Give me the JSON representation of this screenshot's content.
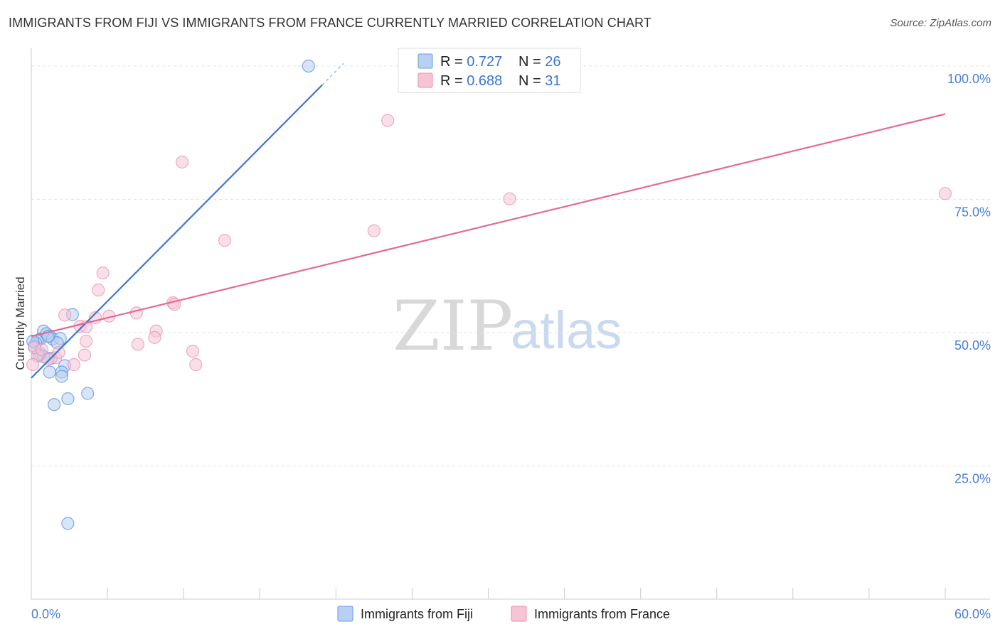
{
  "title": "IMMIGRANTS FROM FIJI VS IMMIGRANTS FROM FRANCE CURRENTLY MARRIED CORRELATION CHART",
  "source": "Source: ZipAtlas.com",
  "watermark": {
    "zip": "ZIP",
    "atlas": "atlas"
  },
  "colors": {
    "fiji": "#3a78d6",
    "france": "#e46a95",
    "fiji_fill": "#b7d0f3",
    "france_fill": "#f7c4d5"
  },
  "chart_data": {
    "type": "scatter",
    "title": "IMMIGRANTS FROM FIJI VS IMMIGRANTS FROM FRANCE CURRENTLY MARRIED CORRELATION CHART",
    "xlabel": "",
    "ylabel": "Currently Married",
    "xlim": [
      0,
      60
    ],
    "ylim": [
      0,
      102
    ],
    "x_tick_labels": [
      "0.0%",
      "60.0%"
    ],
    "y_ticks": [
      25,
      50,
      75,
      100
    ],
    "y_tick_labels": [
      "25.0%",
      "50.0%",
      "75.0%",
      "100.0%"
    ],
    "grid": true,
    "legend": {
      "placement": "top-center",
      "entries": [
        {
          "r_label": "R = ",
          "r_value": "0.727",
          "n_label": "N = ",
          "n_value": "26"
        },
        {
          "r_label": "R = ",
          "r_value": "0.688",
          "n_label": "N = ",
          "n_value": "31"
        }
      ]
    },
    "bottom_legend": [
      "Immigrants from Fiji",
      "Immigrants from France"
    ],
    "series": [
      {
        "name": "Immigrants from Fiji",
        "points": [
          [
            18.2,
            100.0
          ],
          [
            2.7,
            53.4
          ],
          [
            0.8,
            50.3
          ],
          [
            1.2,
            49.4
          ],
          [
            0.6,
            48.8
          ],
          [
            0.4,
            48.5
          ],
          [
            1.0,
            49.8
          ],
          [
            1.4,
            48.8
          ],
          [
            1.9,
            48.9
          ],
          [
            0.3,
            48.0
          ],
          [
            1.7,
            48.1
          ],
          [
            0.2,
            47.5
          ],
          [
            0.6,
            46.1
          ],
          [
            1.3,
            45.2
          ],
          [
            2.2,
            43.8
          ],
          [
            1.2,
            42.6
          ],
          [
            2.0,
            42.6
          ],
          [
            2.0,
            41.8
          ],
          [
            2.4,
            37.6
          ],
          [
            1.5,
            36.5
          ],
          [
            3.7,
            38.6
          ],
          [
            0.8,
            45.5
          ],
          [
            2.4,
            14.2
          ],
          [
            0.1,
            48.4
          ],
          [
            0.5,
            45.8
          ],
          [
            1.1,
            49.3
          ]
        ],
        "trend": {
          "x": [
            0.0,
            20.5
          ],
          "y": [
            41.5,
            100.5
          ]
        }
      },
      {
        "name": "Immigrants from France",
        "points": [
          [
            23.4,
            89.8
          ],
          [
            9.9,
            82.0
          ],
          [
            31.4,
            75.1
          ],
          [
            60.0,
            76.1
          ],
          [
            12.7,
            67.3
          ],
          [
            22.5,
            69.1
          ],
          [
            4.7,
            61.2
          ],
          [
            4.4,
            58.0
          ],
          [
            9.3,
            55.6
          ],
          [
            9.4,
            55.3
          ],
          [
            6.9,
            53.7
          ],
          [
            5.1,
            53.1
          ],
          [
            4.2,
            52.8
          ],
          [
            2.2,
            53.3
          ],
          [
            3.2,
            51.2
          ],
          [
            3.6,
            51.1
          ],
          [
            8.2,
            50.3
          ],
          [
            8.1,
            49.1
          ],
          [
            7.0,
            47.8
          ],
          [
            3.6,
            48.4
          ],
          [
            10.6,
            46.5
          ],
          [
            3.5,
            45.8
          ],
          [
            1.6,
            45.3
          ],
          [
            1.8,
            46.3
          ],
          [
            0.4,
            45.6
          ],
          [
            0.2,
            47.2
          ],
          [
            0.7,
            46.8
          ],
          [
            2.8,
            44.0
          ],
          [
            10.8,
            44.0
          ],
          [
            0.1,
            44.0
          ],
          [
            1.1,
            45.0
          ]
        ],
        "trend": {
          "x": [
            0.0,
            60.0
          ],
          "y": [
            49.3,
            91.0
          ]
        }
      }
    ]
  }
}
